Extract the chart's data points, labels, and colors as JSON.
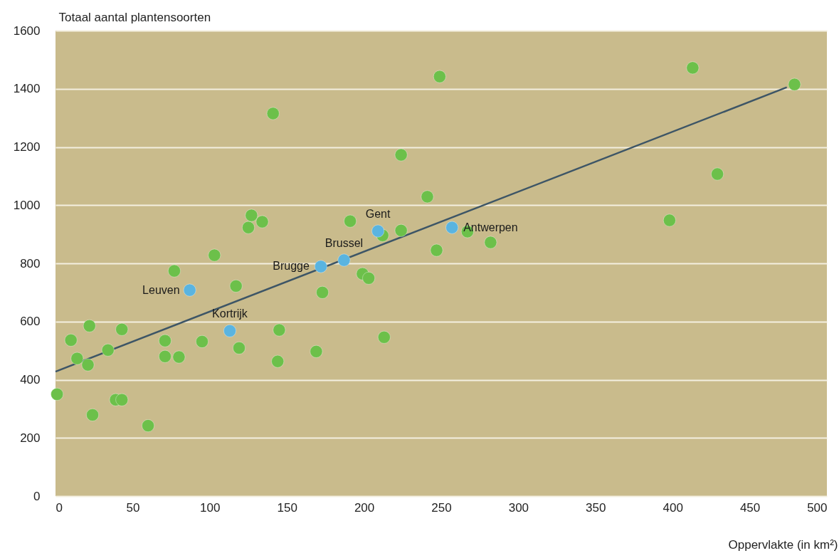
{
  "chart_data": {
    "type": "scatter",
    "xlabel": "Oppervlakte (in km²)",
    "ylabel": "Totaal aantal plantensoorten",
    "xlim": [
      0,
      500
    ],
    "xticks": [
      0,
      50,
      100,
      150,
      200,
      250,
      300,
      350,
      400,
      450,
      500
    ],
    "ylim": [
      0,
      1600
    ],
    "yticks": [
      0,
      200,
      400,
      600,
      800,
      1000,
      1200,
      1400,
      1600
    ],
    "grid": "y",
    "marker": "circle",
    "series": [
      {
        "color": "#6cc04a",
        "x": [
          1,
          10,
          14,
          22,
          21,
          24,
          34,
          39,
          43,
          43,
          60,
          71,
          71,
          80,
          77,
          95,
          103,
          117,
          119,
          125,
          127,
          134,
          141,
          145,
          144,
          169,
          173,
          191,
          199,
          203,
          212,
          213,
          224,
          224,
          241,
          247,
          249,
          267,
          282,
          398,
          413,
          429,
          479
        ],
        "values": [
          350,
          536,
          473,
          585,
          451,
          279,
          502,
          331,
          331,
          573,
          242,
          534,
          480,
          478,
          774,
          531,
          828,
          722,
          509,
          923,
          965,
          943,
          1315,
          571,
          463,
          497,
          700,
          945,
          764,
          749,
          896,
          546,
          913,
          1173,
          1029,
          845,
          1442,
          909,
          872,
          948,
          1472,
          1107,
          1415
        ]
      },
      {
        "color": "#5ab4e0",
        "x": [
          87,
          113,
          172,
          187,
          209,
          257
        ],
        "values": [
          708,
          568,
          789,
          811,
          911,
          923
        ]
      },
      {
        "type": "line",
        "marker": "none",
        "color": "#3d5566",
        "x": [
          0,
          474
        ],
        "values": [
          428,
          1405
        ]
      }
    ],
    "annotations": [
      {
        "text": "Leuven",
        "x": 87,
        "y": 708
      },
      {
        "text": "Kortrijk",
        "x": 113,
        "y": 568
      },
      {
        "text": "Brugge",
        "x": 172,
        "y": 789
      },
      {
        "text": "Brussel",
        "x": 187,
        "y": 811
      },
      {
        "text": "Gent",
        "x": 209,
        "y": 911
      },
      {
        "text": "Antwerpen",
        "x": 257,
        "y": 923
      }
    ]
  }
}
